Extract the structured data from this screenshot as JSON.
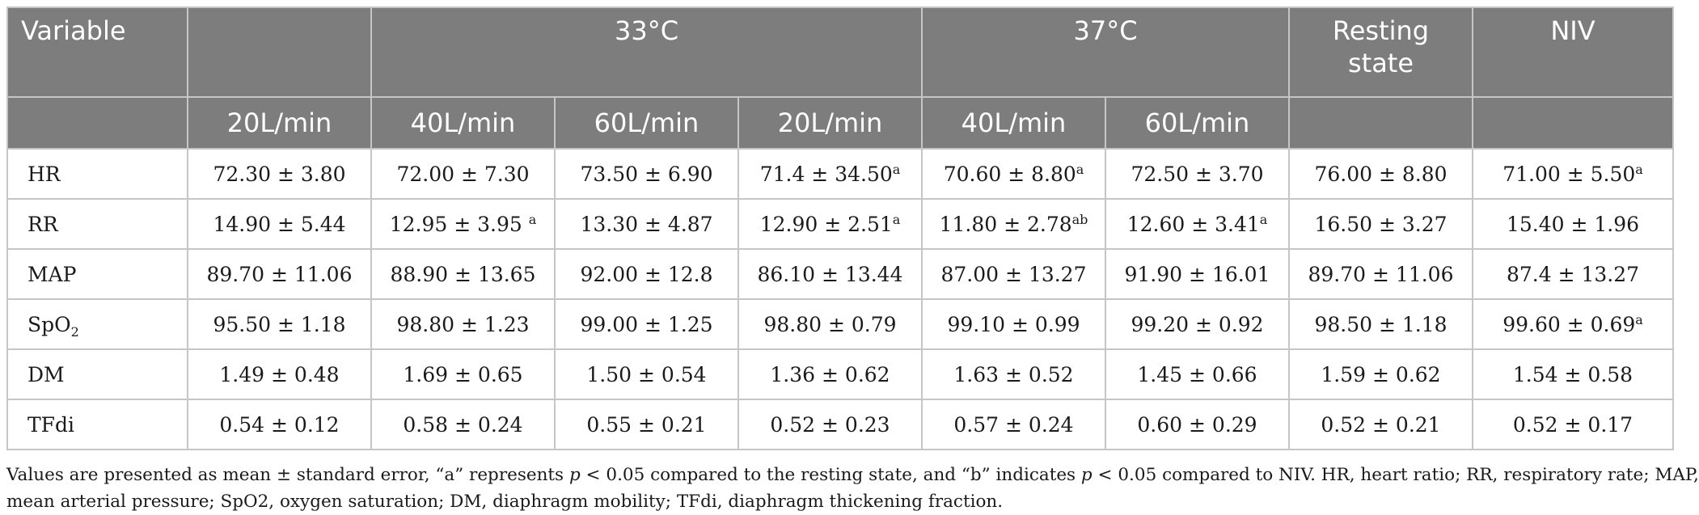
{
  "table": {
    "header": {
      "variable": "Variable",
      "group_33": "33°C",
      "group_37": "37°C",
      "resting_line1": "Resting",
      "resting_line2": "state",
      "niv": "NIV",
      "flows": [
        "20L/min",
        "40L/min",
        "60L/min",
        "20L/min",
        "40L/min",
        "60L/min"
      ]
    },
    "rows": [
      {
        "label_main": "HR",
        "label_sub": "",
        "cells": [
          {
            "v": "72.30 ± 3.80",
            "s": ""
          },
          {
            "v": "72.00 ± 7.30",
            "s": ""
          },
          {
            "v": "73.50 ± 6.90",
            "s": ""
          },
          {
            "v": "71.4 ± 34.50",
            "s": "a"
          },
          {
            "v": "70.60 ± 8.80",
            "s": "a"
          },
          {
            "v": "72.50 ± 3.70",
            "s": ""
          },
          {
            "v": "76.00 ± 8.80",
            "s": ""
          },
          {
            "v": "71.00 ± 5.50",
            "s": "a"
          }
        ]
      },
      {
        "label_main": "RR",
        "label_sub": "",
        "cells": [
          {
            "v": "14.90 ± 5.44",
            "s": ""
          },
          {
            "v": "12.95 ± 3.95 ",
            "s": "a"
          },
          {
            "v": "13.30 ± 4.87",
            "s": ""
          },
          {
            "v": "12.90 ± 2.51",
            "s": "a"
          },
          {
            "v": "11.80 ± 2.78",
            "s": "ab"
          },
          {
            "v": "12.60 ± 3.41",
            "s": "a"
          },
          {
            "v": "16.50 ± 3.27",
            "s": ""
          },
          {
            "v": "15.40 ± 1.96",
            "s": ""
          }
        ]
      },
      {
        "label_main": "MAP",
        "label_sub": "",
        "cells": [
          {
            "v": "89.70 ± 11.06",
            "s": ""
          },
          {
            "v": "88.90 ± 13.65",
            "s": ""
          },
          {
            "v": "92.00 ± 12.8",
            "s": ""
          },
          {
            "v": "86.10 ± 13.44",
            "s": ""
          },
          {
            "v": "87.00 ± 13.27",
            "s": ""
          },
          {
            "v": "91.90 ± 16.01",
            "s": ""
          },
          {
            "v": "89.70 ± 11.06",
            "s": ""
          },
          {
            "v": "87.4 ± 13.27",
            "s": ""
          }
        ]
      },
      {
        "label_main": "SpO",
        "label_sub": "2",
        "cells": [
          {
            "v": "95.50 ± 1.18",
            "s": ""
          },
          {
            "v": "98.80 ± 1.23",
            "s": ""
          },
          {
            "v": "99.00 ± 1.25",
            "s": ""
          },
          {
            "v": "98.80 ± 0.79",
            "s": ""
          },
          {
            "v": "99.10 ± 0.99",
            "s": ""
          },
          {
            "v": "99.20 ± 0.92",
            "s": ""
          },
          {
            "v": "98.50 ± 1.18",
            "s": ""
          },
          {
            "v": "99.60 ± 0.69",
            "s": "a"
          }
        ]
      },
      {
        "label_main": "DM",
        "label_sub": "",
        "cells": [
          {
            "v": "1.49 ± 0.48",
            "s": ""
          },
          {
            "v": "1.69 ± 0.65",
            "s": ""
          },
          {
            "v": "1.50 ± 0.54",
            "s": ""
          },
          {
            "v": "1.36 ± 0.62",
            "s": ""
          },
          {
            "v": "1.63 ± 0.52",
            "s": ""
          },
          {
            "v": "1.45 ± 0.66",
            "s": ""
          },
          {
            "v": "1.59 ± 0.62",
            "s": ""
          },
          {
            "v": "1.54 ± 0.58",
            "s": ""
          }
        ]
      },
      {
        "label_main": "TFdi",
        "label_sub": "",
        "cells": [
          {
            "v": "0.54 ± 0.12",
            "s": ""
          },
          {
            "v": "0.58 ± 0.24",
            "s": ""
          },
          {
            "v": "0.55 ± 0.21",
            "s": ""
          },
          {
            "v": "0.52 ± 0.23",
            "s": ""
          },
          {
            "v": "0.57 ± 0.24",
            "s": ""
          },
          {
            "v": "0.60 ± 0.29",
            "s": ""
          },
          {
            "v": "0.52 ± 0.21",
            "s": ""
          },
          {
            "v": "0.52 ± 0.17",
            "s": ""
          }
        ]
      }
    ]
  },
  "footnote": {
    "t1": "Values are presented as mean ± standard error, “a” represents ",
    "p1": "p",
    "t2": " < 0.05 compared to the resting state, and “b” indicates ",
    "p2": "p",
    "t3": " < 0.05 compared to NIV. HR, heart ratio; RR, respiratory rate; MAP,",
    "line2": "mean arterial pressure; SpO2, oxygen saturation; DM, diaphragm mobility; TFdi, diaphragm thickening fraction."
  },
  "colors": {
    "header_bg": "#7d7d7d",
    "header_text": "#ffffff",
    "grid": "#c6c6c6",
    "body_text": "#1a1a1a"
  }
}
